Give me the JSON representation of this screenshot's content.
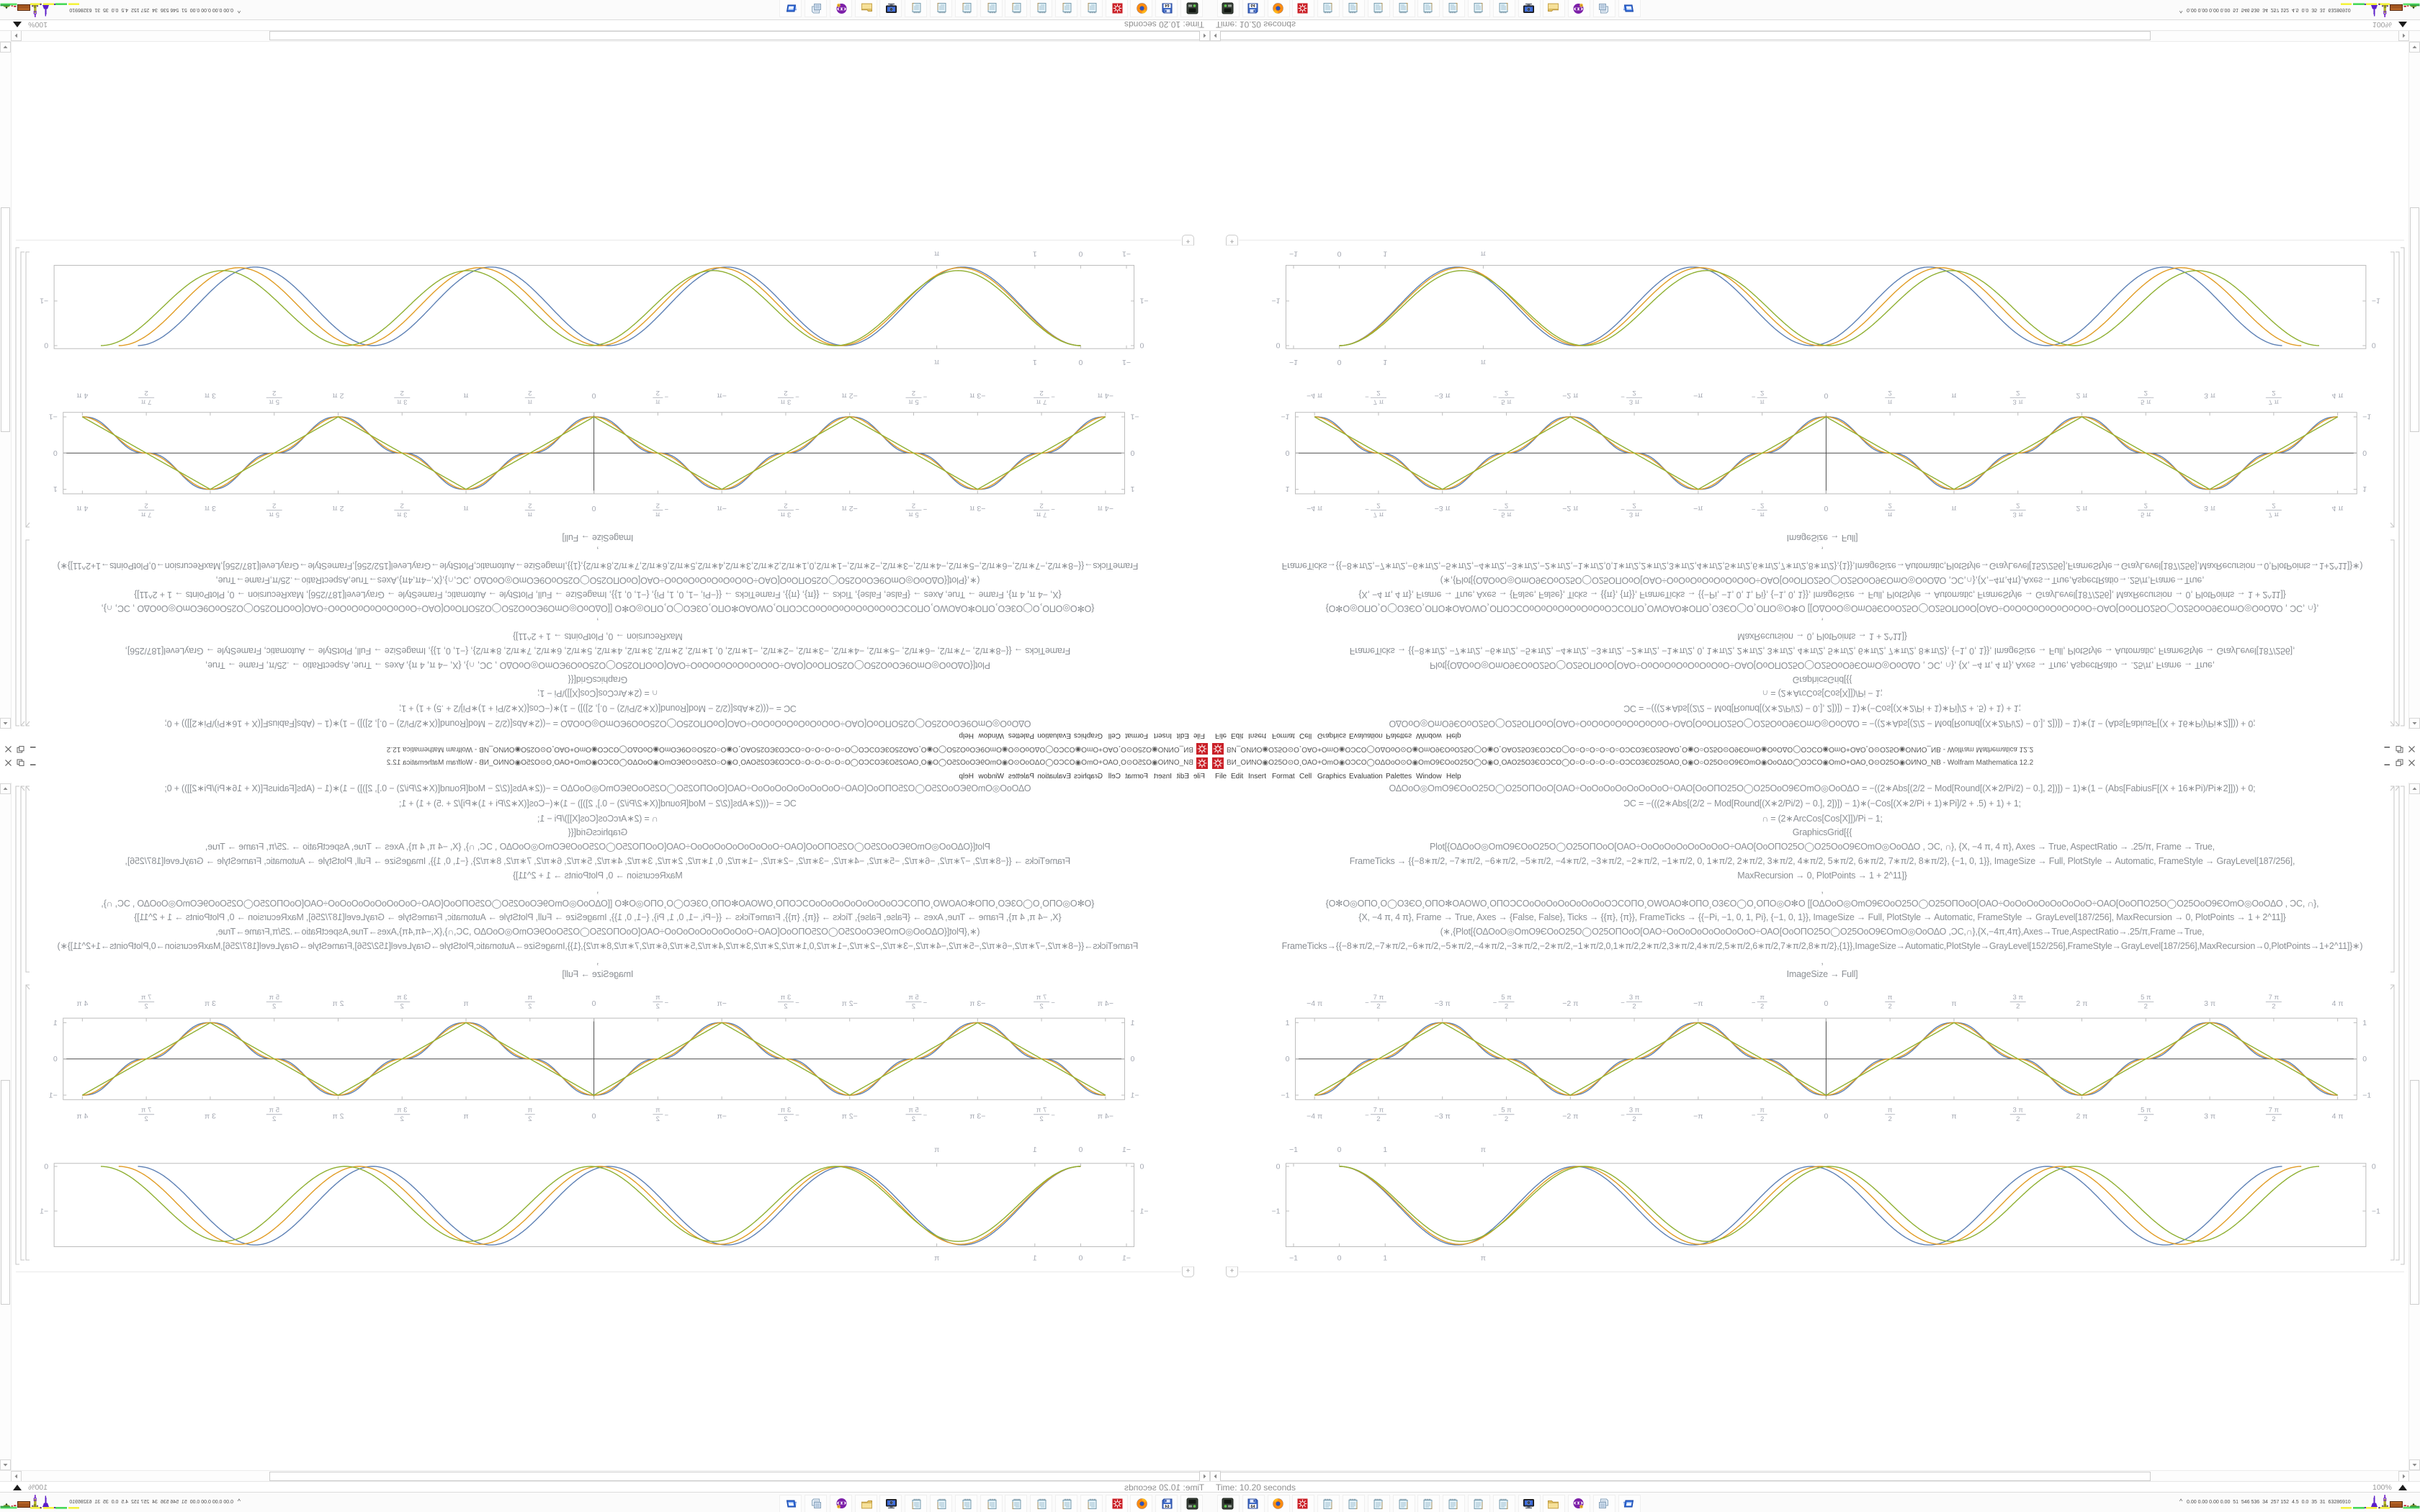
{
  "window": {
    "title": "ВИ_ОИNО◉О25О⊙О¸ОАО+ОmО◉ОƆϹО◯ОΔОοО⊙О◉ОmО9ЄОοО25О◯О◉О¸ОАО25О3ЄОƆϹО◯О○О○О○О○О○ОƆϹО3ЄО25ОАО¸О◉О○О25О⊙О9ЄОmО◉ОοОΔО◯ОƆϹО◉ОmО+ОАО¸О⊙О25О◉ОИNО_NB - Wolfram Mathematica 12.2",
    "app_icon": "mathematica-spikey-icon",
    "buttons": {
      "minimize": "minimize",
      "restore": "restore",
      "close": "close"
    }
  },
  "menu": {
    "items": [
      "File",
      "Edit",
      "Insert",
      "Format",
      "Cell",
      "Graphics",
      "Evaluation",
      "Palettes",
      "Window",
      "Help"
    ]
  },
  "notebook": {
    "code_lines": [
      "ΟΔΟοΟ◎ΟmΟ9ЄΟοΟ25Ο◯Ο25ΟΠΟοΟ[ΟΑΟ÷ΟοΟοΟοΟοΟοΟοΟοΟ÷ΟΑΟ[ΟοΟΠΟ25Ο◯Ο25ΟοΟ9ЄΟmΟ◎ΟοΟΔΟ      = −((2∗Abs[(2/2 − Mod[Round[(X∗2/Pi/2) − 0.], 2])]) − 1)∗(1 − (Abs[FabiusF[(X + 16∗Pi)/Pi∗2]])) + 0;",
      "ƆC = −(((2∗Abs[(2/2 − Mod[Round[(X∗2/Pi/2) − 0.], 2])]) − 1)∗(−Cos[(X∗2/Pi + 1)∗Pi]/2 + .5) + 1) + 1;",
      "∩ = (2∗ArcCos[Cos[X]])/Pi  − 1;",
      "GraphicsGrid[{{",
      "Plot[{ΟΔΟοΟ◎ΟmΟ9ЄΟοΟ25Ο◯Ο25ΟΠΟοΟ[ΟΑΟ÷ΟοΟοΟοΟοΟοΟοΟοΟ÷ΟΑΟ[ΟοΟΠΟ25Ο◯Ο25ΟοΟ9ЄΟmΟ◎ΟοΟΔΟ      , ƆC, ∩}, {X, −4 π, 4 π}, Axes → True, AspectRatio → .25/π, Frame → True,",
      "FrameTicks → {{−8∗π/2, −7∗π/2, −6∗π/2, −5∗π/2, −4∗π/2, −3∗π/2, −2∗π/2, −1∗π/2, 0, 1∗π/2, 2∗π/2, 3∗π/2, 4∗π/2, 5∗π/2, 6∗π/2, 7∗π/2, 8∗π/2}, {−1, 0, 1}}, ImageSize → Full, PlotStyle → Automatic, FrameStyle → GrayLevel[187/256],",
      "MaxRecursion → 0, PlotPoints → 1 + 2^11]}",
      ",",
      "{Ο✻Ο◎ΟΠΟ¸Ο◯Ο3ЄΟ¸ΟΠΟ✻ΟΑΟWΟ¸ΟΠΟƆϹΟοΟοΟοΟοΟοΟοΟοΟƆϹΟΠΟ¸ΟWΟΑΟ✻ΟΠΟ¸Ο3ЄΟ◯Ο¸ΟΠΟ◎Ο✻Ο   [[ΟΔΟοΟ◎ΟmΟ9ЄΟοΟ25Ο◯Ο25ΟΠΟοΟ[ΟΑΟ÷ΟοΟοΟοΟοΟοΟοΟοΟ÷ΟΑΟ[ΟοΟΠΟ25Ο◯Ο25ΟοΟ9ЄΟmΟ◎ΟοΟΔΟ    , ƆC, ∩},",
      "{X, −4 π, 4 π}, Frame → True, Axes → {False, False}, Ticks → {{π}, {π}}, FrameTicks → {{−Pi, −1, 0, 1, Pi}, {−1, 0, 1}}, ImageSize → Full, PlotStyle → Automatic, FrameStyle → GrayLevel[187/256], MaxRecursion → 0, PlotPoints → 1 + 2^11]}",
      "(∗,{Plot[{ΟΔΟοΟ◎ΟmΟ9ЄΟοΟ25Ο◯Ο25ΟΠΟοΟ[ΟΑΟ÷ΟοΟοΟοΟοΟοΟοΟοΟ÷ΟΑΟ[ΟοΟΠΟ25Ο◯Ο25ΟοΟ9ЄΟmΟ◎ΟοΟΔΟ    ,ƆC,∩},{X,−4π,4π},Axes→True,AspectRatio→.25/π,Frame→True,",
      "FrameTicks→{{−8∗π/2,−7∗π/2,−6∗π/2,−5∗π/2,−4∗π/2,−3∗π/2,−2∗π/2,−1∗π/2,0,1∗π/2,2∗π/2,3∗π/2,4∗π/2,5∗π/2,6∗π/2,7∗π/2,8∗π/2},{1}},ImageSize→Automatic,PlotStyle→GrayLevel[152/256],FrameStyle→GrayLevel[187/256],MaxRecursion→0,PlotPoints→1+2^11]}∗)",
      ",",
      "ImageSize → Full]"
    ],
    "insert_plus": "+"
  },
  "chart_data": [
    {
      "type": "line",
      "title": "",
      "xlabel": "",
      "ylabel": "",
      "x_range": [
        -13.0376,
        13.0376
      ],
      "y_range": [
        -1.125,
        1.125
      ],
      "grid": false,
      "legend": "none",
      "frame_color": "#bdbdbd",
      "axes_color": "#4d4d4d",
      "tick_label_color": "#a4a8b2",
      "x_ticks": [
        {
          "v": -12.5664,
          "label": "−4 π"
        },
        {
          "v": -10.9956,
          "frac": {
            "sign": "−",
            "num": "7 π",
            "den": "2"
          }
        },
        {
          "v": -9.4248,
          "label": "−3 π"
        },
        {
          "v": -7.854,
          "frac": {
            "sign": "−",
            "num": "5 π",
            "den": "2"
          }
        },
        {
          "v": -6.2832,
          "label": "−2 π"
        },
        {
          "v": -4.7124,
          "frac": {
            "sign": "−",
            "num": "3 π",
            "den": "2"
          }
        },
        {
          "v": -3.1416,
          "label": "−π"
        },
        {
          "v": -1.5708,
          "frac": {
            "sign": "−",
            "num": "π",
            "den": "2"
          }
        },
        {
          "v": 0,
          "label": "0"
        },
        {
          "v": 1.5708,
          "frac": {
            "sign": "",
            "num": "π",
            "den": "2"
          }
        },
        {
          "v": 3.1416,
          "label": "π"
        },
        {
          "v": 4.7124,
          "frac": {
            "sign": "",
            "num": "3 π",
            "den": "2"
          }
        },
        {
          "v": 6.2832,
          "label": "2 π"
        },
        {
          "v": 7.854,
          "frac": {
            "sign": "",
            "num": "5 π",
            "den": "2"
          }
        },
        {
          "v": 9.4248,
          "label": "3 π"
        },
        {
          "v": 10.9956,
          "frac": {
            "sign": "",
            "num": "7 π",
            "den": "2"
          }
        },
        {
          "v": 12.5664,
          "label": "4 π"
        }
      ],
      "y_ticks": [
        {
          "v": 1,
          "label": "1"
        },
        {
          "v": 0,
          "label": "0"
        },
        {
          "v": -1,
          "label": "−1"
        }
      ],
      "series": [
        {
          "name": "FabiusF-smoothed square-triangle wave",
          "color": "#5e81b5",
          "shape": "smoothstep-triangle",
          "period": 6.2832,
          "min": -1,
          "max": 1,
          "valleys_at": [
            -12.5664,
            -6.2832,
            0,
            6.2832,
            12.5664
          ],
          "peaks_at": [
            -9.4248,
            -3.1416,
            3.1416,
            9.4248
          ]
        },
        {
          "name": "ƆC cosine-smoothed triangle wave",
          "color": "#e19c24",
          "shape": "sine-eased-triangle",
          "period": 6.2832,
          "min": -1,
          "max": 1,
          "valleys_at": [
            -12.5664,
            -6.2832,
            0,
            6.2832,
            12.5664
          ],
          "peaks_at": [
            -9.4248,
            -3.1416,
            3.1416,
            9.4248
          ]
        },
        {
          "name": "∩ = 2 ArcCos[Cos[X]]/π − 1 triangle wave",
          "color": "#8fb032",
          "shape": "triangle",
          "period": 6.2832,
          "min": -1,
          "max": 1,
          "valleys_at": [
            -12.5664,
            -6.2832,
            0,
            6.2832,
            12.5664
          ],
          "peaks_at": [
            -9.4248,
            -3.1416,
            3.1416,
            9.4248
          ]
        }
      ]
    },
    {
      "type": "line",
      "title": "",
      "xlabel": "",
      "ylabel": "",
      "x_range": [
        -1.166,
        22.41
      ],
      "y_range": [
        -1.798,
        0.068
      ],
      "grid": false,
      "legend": "none",
      "frame_color": "#bdbdbd",
      "tick_label_color": "#a4a8b2",
      "x_ticks": [
        {
          "v": -1,
          "label": "−1"
        },
        {
          "v": 0,
          "label": "0"
        },
        {
          "v": 1,
          "label": "1"
        },
        {
          "v": 3.1416,
          "label": "π"
        }
      ],
      "y_ticks": [
        {
          "v": 0,
          "label": "0"
        },
        {
          "v": -1,
          "label": "−1"
        }
      ],
      "series": [
        {
          "name": "blue inverted-cosine wave",
          "color": "#5e81b5",
          "shape": "cos-dip",
          "period": 5.15,
          "cycles": 4,
          "depth": -1.76,
          "x_start": 0,
          "x_end": 20.6
        },
        {
          "name": "orange inverted-cosine wave",
          "color": "#e19c24",
          "shape": "cos-dip",
          "period": 5.25,
          "cycles": 4,
          "depth": -1.745,
          "x_start": 0,
          "x_end": 21.0
        },
        {
          "name": "green inverted-cosine wave",
          "color": "#8fb032",
          "shape": "cos-dip",
          "period": 5.35,
          "cycles": 4,
          "depth": -1.68,
          "x_start": 0,
          "x_end": 21.4
        }
      ]
    }
  ],
  "status_bar": {
    "left": "Time: 10.20 seconds",
    "zoom": "100%"
  },
  "taskbar": {
    "tray_chevron": "^",
    "tray_text": "0.00 0.00 0.00 0.00  51  546 536  34  257 152  4.5  0.0  35  31  63286910",
    "icons": [
      "device",
      "floppy64",
      "firefox",
      "mathematica",
      "notepad",
      "notepad",
      "notepad",
      "notepad",
      "notepad",
      "notepad",
      "notepad",
      "notepad",
      "monitor",
      "folder",
      "purple-mask",
      "printer",
      "window-blue"
    ]
  }
}
